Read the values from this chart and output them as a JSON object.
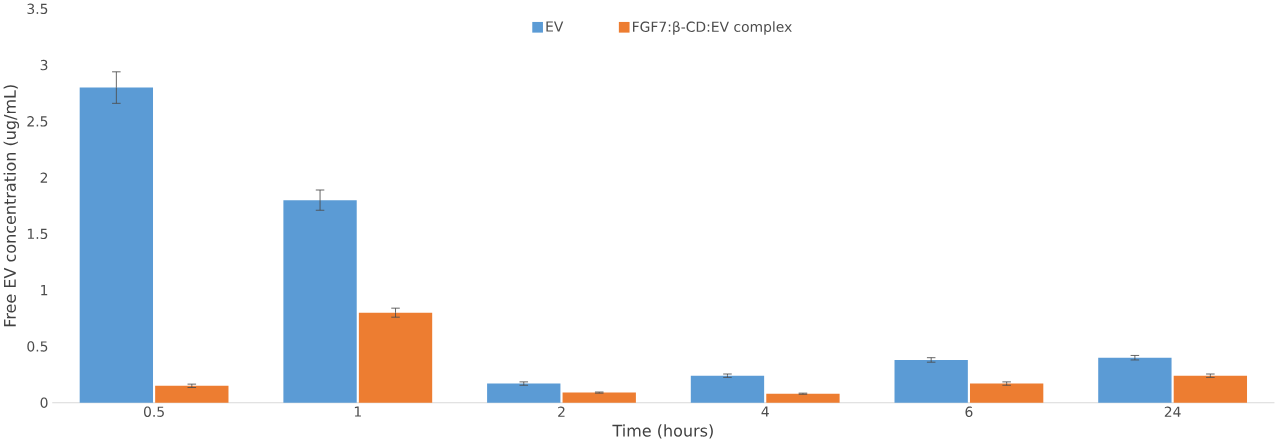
{
  "chart_data": {
    "type": "bar",
    "xlabel": "Time (hours)",
    "ylabel": "Free EV concentration (ug/mL)",
    "categories": [
      "0.5",
      "1",
      "2",
      "4",
      "6",
      "24"
    ],
    "series": [
      {
        "name": "EV",
        "color": "#5b9bd5",
        "values": [
          2.8,
          1.8,
          0.17,
          0.24,
          0.38,
          0.4
        ],
        "errors": [
          0.14,
          0.09,
          0.015,
          0.015,
          0.02,
          0.02
        ]
      },
      {
        "name": "FGF7:β-CD:EV complex",
        "color": "#ed7d31",
        "values": [
          0.15,
          0.8,
          0.09,
          0.08,
          0.17,
          0.24
        ],
        "errors": [
          0.015,
          0.04,
          0.005,
          0.005,
          0.015,
          0.015
        ]
      }
    ],
    "ylim": [
      0,
      3.5
    ],
    "yticks": [
      0,
      0.5,
      1,
      1.5,
      2,
      2.5,
      3,
      3.5
    ],
    "legend": "top"
  }
}
